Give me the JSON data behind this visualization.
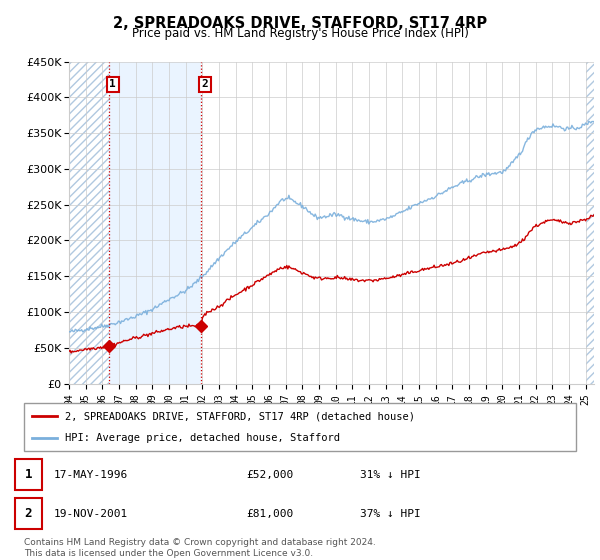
{
  "title": "2, SPREADOAKS DRIVE, STAFFORD, ST17 4RP",
  "subtitle": "Price paid vs. HM Land Registry's House Price Index (HPI)",
  "ylim": [
    0,
    450000
  ],
  "yticks": [
    0,
    50000,
    100000,
    150000,
    200000,
    250000,
    300000,
    350000,
    400000,
    450000
  ],
  "ytick_labels": [
    "£0",
    "£50K",
    "£100K",
    "£150K",
    "£200K",
    "£250K",
    "£300K",
    "£350K",
    "£400K",
    "£450K"
  ],
  "xlim_start": 1994.0,
  "xlim_end": 2025.5,
  "purchase1_date": 1996.37,
  "purchase1_price": 52000,
  "purchase2_date": 2001.89,
  "purchase2_price": 81000,
  "purchase1_display": "17-MAY-1996",
  "purchase1_amount": "£52,000",
  "purchase1_hpi": "31% ↓ HPI",
  "purchase2_display": "19-NOV-2001",
  "purchase2_amount": "£81,000",
  "purchase2_hpi": "37% ↓ HPI",
  "line_color_property": "#cc0000",
  "line_color_hpi": "#7aafdc",
  "marker_color": "#cc0000",
  "vline_color": "#cc0000",
  "legend_label_property": "2, SPREADOAKS DRIVE, STAFFORD, ST17 4RP (detached house)",
  "legend_label_hpi": "HPI: Average price, detached house, Stafford",
  "footnote": "Contains HM Land Registry data © Crown copyright and database right 2024.\nThis data is licensed under the Open Government Licence v3.0.",
  "grid_color": "#cccccc",
  "hpi_knots_x": [
    1994,
    1995,
    1996,
    1997,
    1998,
    1999,
    2000,
    2001,
    2002,
    2003,
    2004,
    2005,
    2006,
    2007,
    2008,
    2009,
    2010,
    2011,
    2012,
    2013,
    2014,
    2015,
    2016,
    2017,
    2018,
    2019,
    2020,
    2021,
    2022,
    2023,
    2024,
    2025
  ],
  "hpi_knots_y": [
    72000,
    76000,
    80000,
    86000,
    94000,
    104000,
    118000,
    130000,
    150000,
    175000,
    198000,
    218000,
    238000,
    258000,
    248000,
    232000,
    236000,
    230000,
    226000,
    230000,
    240000,
    252000,
    262000,
    274000,
    284000,
    292000,
    296000,
    320000,
    355000,
    360000,
    356000,
    362000
  ],
  "prop_knots_x": [
    1994,
    1995,
    1996,
    1996.37,
    1997,
    1998,
    1999,
    2000,
    2001,
    2001.89,
    2002,
    2003,
    2004,
    2005,
    2006,
    2007,
    2008,
    2009,
    2010,
    2011,
    2012,
    2013,
    2014,
    2015,
    2016,
    2017,
    2018,
    2019,
    2020,
    2021,
    2022,
    2023,
    2024,
    2025
  ],
  "prop_knots_y": [
    44000,
    48000,
    51000,
    52000,
    57000,
    64000,
    70000,
    76000,
    80000,
    81000,
    92000,
    108000,
    124000,
    138000,
    152000,
    163000,
    155000,
    147000,
    148000,
    145000,
    144000,
    147000,
    152000,
    158000,
    163000,
    168000,
    175000,
    183000,
    187000,
    196000,
    220000,
    228000,
    225000,
    230000
  ]
}
